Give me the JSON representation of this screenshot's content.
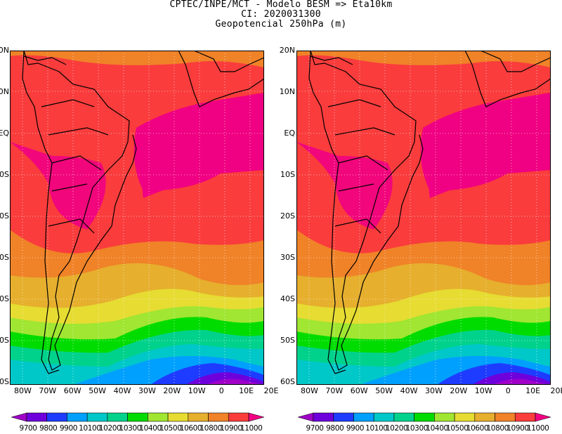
{
  "header": {
    "line1": "CPTEC/INPE/MCT -  Modelo BESM => Eta10km",
    "line2": "CI: 2020031300",
    "line3": "Geopotencial 250hPa (m)"
  },
  "map": {
    "lat_labels": [
      "20N",
      "10N",
      "EQ",
      "10S",
      "20S",
      "30S",
      "40S",
      "50S",
      "60S"
    ],
    "lon_labels": [
      "80W",
      "70W",
      "60W",
      "50W",
      "40W",
      "30W",
      "20W",
      "10W",
      "0",
      "10E",
      "20E"
    ]
  },
  "colorbar": {
    "labels": [
      "9700",
      "9800",
      "9900",
      "10100",
      "10200",
      "10300",
      "10400",
      "10500",
      "10600",
      "10800",
      "10900",
      "11000"
    ],
    "labels_text": "9700 9800 9900 10100 10200 10300 10400 10500 10600 10800 10900 11000",
    "colors": [
      "#a000c8",
      "#6e00dc",
      "#1e3cff",
      "#00a0ff",
      "#00c8c8",
      "#00d28c",
      "#00dc00",
      "#a0e632",
      "#e6dc32",
      "#e6af2d",
      "#f08228",
      "#fa3c3c",
      "#f00082"
    ]
  }
}
